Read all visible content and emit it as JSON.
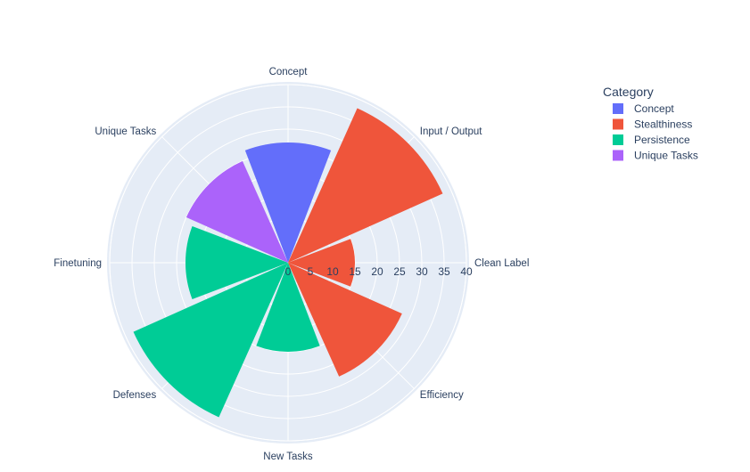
{
  "chart_data": {
    "type": "barpolar",
    "title": "",
    "angular_categories": [
      "Concept",
      "Input / Output",
      "Clean Label",
      "Efficiency",
      "New Tasks",
      "Defenses",
      "Finetuning",
      "Unique Tasks"
    ],
    "radial_ticks": [
      "0",
      "5",
      "10",
      "15",
      "20",
      "25",
      "30",
      "35",
      "40"
    ],
    "radial_range": [
      0,
      40
    ],
    "legend": {
      "title": "Category",
      "entries": [
        "Concept",
        "Stealthiness",
        "Persistence",
        "Unique Tasks"
      ],
      "placement": "top-right"
    },
    "series": [
      {
        "name": "Concept",
        "color": "#636efa",
        "categories": [
          "Concept"
        ],
        "values": [
          27
        ]
      },
      {
        "name": "Stealthiness",
        "color": "#ef553b",
        "categories": [
          "Input / Output",
          "Clean Label",
          "Efficiency"
        ],
        "values": [
          38,
          15,
          28
        ]
      },
      {
        "name": "Persistence",
        "color": "#00cc96",
        "categories": [
          "New Tasks",
          "Defenses",
          "Finetuning"
        ],
        "values": [
          20,
          38,
          23
        ]
      },
      {
        "name": "Unique Tasks",
        "color": "#ab63fa",
        "categories": [
          "Unique Tasks"
        ],
        "values": [
          25
        ]
      }
    ],
    "grid": true
  }
}
